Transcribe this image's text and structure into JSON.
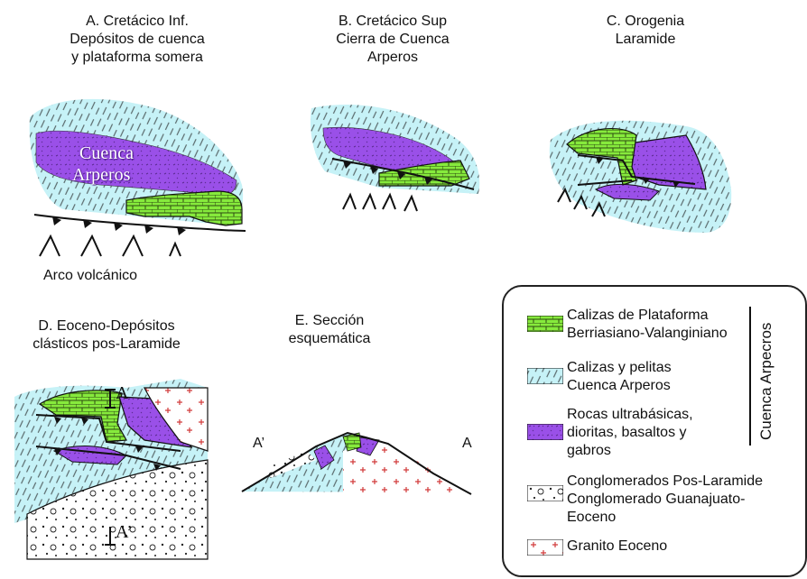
{
  "panels": {
    "a": {
      "title": [
        "A. Cretácico Inf.",
        "Depósitos de cuenca",
        "y plataforma somera"
      ],
      "basin_label": [
        "Cuenca",
        "Arperos"
      ],
      "arc_label": "Arco volcánico"
    },
    "b": {
      "title": [
        "B. Cretácico Sup",
        "Cierra de Cuenca",
        "Arperos"
      ]
    },
    "c": {
      "title": [
        "C. Orogenia",
        "Laramide"
      ]
    },
    "d": {
      "title": [
        "D. Eoceno-Depósitos",
        "clásticos pos-Laramide"
      ],
      "marker_a": "A",
      "marker_a2": "A’"
    },
    "e": {
      "title": [
        "E. Sección",
        "esquemática"
      ],
      "left_end": "A’",
      "right_end": "A"
    }
  },
  "legend": {
    "group_label": "Cuenca Arpecros",
    "items": [
      {
        "lines": [
          "Calizas de Plataforma",
          "Berriasiano-Valanginiano"
        ],
        "pattern": "limestone-platform",
        "color": "#86ea3c"
      },
      {
        "lines": [
          "Calizas y pelitas",
          "Cuenca Arperos"
        ],
        "pattern": "basin-hatch",
        "color": "#c6f2f7"
      },
      {
        "lines": [
          "Rocas ultrabásicas,",
          "dioritas, basaltos y",
          "gabros"
        ],
        "pattern": "mafic",
        "color": "#9a50e8"
      },
      {
        "lines": [
          "Conglomerados Pos-Laramide",
          "Conglomerado Guanajuato-",
          "Eoceno"
        ],
        "pattern": "conglomerate",
        "color": "#ffffff"
      },
      {
        "lines": [
          "Granito Eoceno"
        ],
        "pattern": "granite",
        "color": "#ffffff"
      }
    ]
  },
  "colors": {
    "basin": "#c6f2f7",
    "platform": "#86ea3c",
    "mafic": "#9a50e8",
    "granite_cross": "#d23a3a",
    "line": "#111111"
  }
}
